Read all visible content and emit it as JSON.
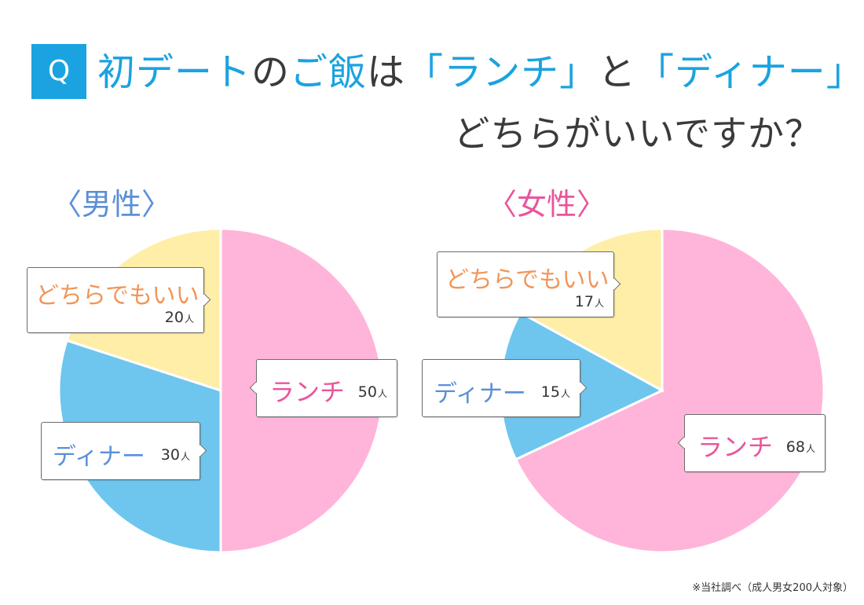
{
  "header": {
    "badge": "Q",
    "title_parts": [
      "初デート",
      "の",
      "ご飯",
      "は",
      "「ランチ」",
      "と",
      "「ディナー」"
    ],
    "line2": "どちらがいいですか？"
  },
  "colors": {
    "lunch": "#ffb5d9",
    "dinner": "#6ec6ee",
    "either": "#ffeea8",
    "accent": "#1aa3e0",
    "lunch_text": "#e9559b",
    "dinner_text": "#5b8fd6",
    "either_text": "#f0965a"
  },
  "chart_data": [
    {
      "type": "pie",
      "title": "〈男性〉",
      "unit": "人",
      "slices": [
        {
          "label": "ランチ",
          "value": 50,
          "count_text": "50"
        },
        {
          "label": "ディナー",
          "value": 30,
          "count_text": "30"
        },
        {
          "label": "どちらでもいい",
          "value": 20,
          "count_text": "20"
        }
      ]
    },
    {
      "type": "pie",
      "title": "〈女性〉",
      "unit": "人",
      "slices": [
        {
          "label": "ランチ",
          "value": 68,
          "count_text": "68"
        },
        {
          "label": "ディナー",
          "value": 15,
          "count_text": "15"
        },
        {
          "label": "どちらでもいい",
          "value": 17,
          "count_text": "17"
        }
      ]
    }
  ],
  "footnote": "※当社調べ（成人男女200人対象）"
}
